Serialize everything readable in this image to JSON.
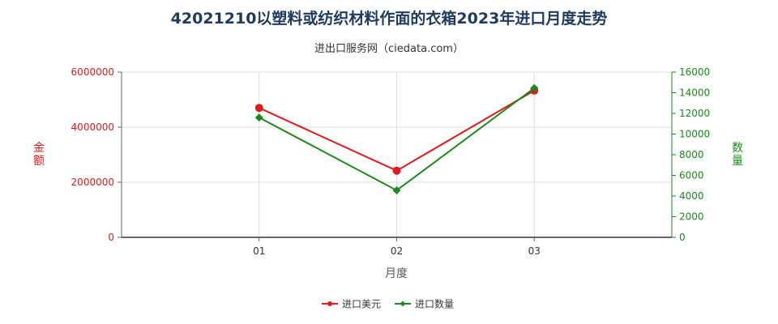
{
  "chart_data": {
    "type": "line",
    "title": "42021210以塑料或纺织材料作面的衣箱2023年进口月度走势",
    "subtitle": "进出口服务网（ciedata.com）",
    "xlabel": "月度",
    "ylabel_left": "金额",
    "ylabel_right": "数量",
    "categories": [
      "01",
      "02",
      "03"
    ],
    "y_left": {
      "range": [
        0,
        6000000
      ],
      "ticks": [
        "0",
        "2000000",
        "4000000",
        "6000000"
      ]
    },
    "y_right": {
      "range": [
        0,
        16000
      ],
      "ticks": [
        "0",
        "2000",
        "4000",
        "6000",
        "8000",
        "10000",
        "12000",
        "14000",
        "16000"
      ]
    },
    "series": [
      {
        "name": "进口美元",
        "axis": "left",
        "color": "#e31a1c",
        "marker": "circle",
        "values": [
          4700000,
          2420000,
          5330000
        ]
      },
      {
        "name": "进口数量",
        "axis": "right",
        "color": "#1a8a1a",
        "marker": "diamond",
        "values": [
          11600,
          4550,
          14450
        ]
      }
    ],
    "grid": true,
    "legend_position": "bottom"
  }
}
